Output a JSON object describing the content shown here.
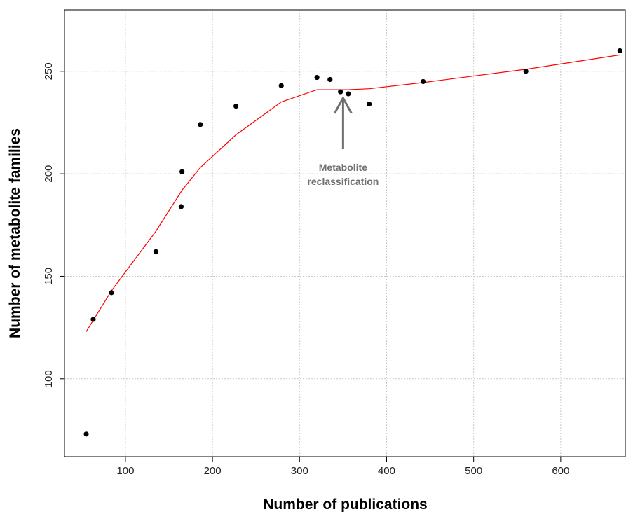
{
  "chart_data": {
    "type": "scatter",
    "xlabel": "Number of publications",
    "ylabel": "Number of metabolite families",
    "xlim": [
      30,
      675
    ],
    "ylim": [
      62,
      280
    ],
    "x_ticks": [
      100,
      200,
      300,
      400,
      500,
      600
    ],
    "y_ticks": [
      100,
      150,
      200,
      250
    ],
    "grid": true,
    "series": [
      {
        "type": "scatter",
        "color": "#000000",
        "points": [
          {
            "x": 55,
            "y": 73
          },
          {
            "x": 63,
            "y": 129
          },
          {
            "x": 84,
            "y": 142
          },
          {
            "x": 135,
            "y": 162
          },
          {
            "x": 164,
            "y": 184
          },
          {
            "x": 165,
            "y": 201
          },
          {
            "x": 186,
            "y": 224
          },
          {
            "x": 227,
            "y": 233
          },
          {
            "x": 279,
            "y": 243
          },
          {
            "x": 320,
            "y": 247
          },
          {
            "x": 335,
            "y": 246
          },
          {
            "x": 347,
            "y": 240
          },
          {
            "x": 356,
            "y": 239
          },
          {
            "x": 380,
            "y": 234
          },
          {
            "x": 442,
            "y": 245
          },
          {
            "x": 560,
            "y": 250
          },
          {
            "x": 668,
            "y": 260
          }
        ]
      },
      {
        "type": "line",
        "color": "#ff0000",
        "points": [
          {
            "x": 55,
            "y": 123
          },
          {
            "x": 84,
            "y": 143
          },
          {
            "x": 135,
            "y": 172
          },
          {
            "x": 165,
            "y": 192
          },
          {
            "x": 186,
            "y": 203
          },
          {
            "x": 227,
            "y": 219
          },
          {
            "x": 279,
            "y": 235
          },
          {
            "x": 320,
            "y": 241
          },
          {
            "x": 356,
            "y": 241
          },
          {
            "x": 380,
            "y": 241.5
          },
          {
            "x": 442,
            "y": 244.5
          },
          {
            "x": 560,
            "y": 251
          },
          {
            "x": 668,
            "y": 258
          }
        ]
      }
    ],
    "annotations": [
      {
        "text_lines": [
          "Metabolite",
          "reclassification"
        ],
        "arrow_x": 350,
        "arrow_from_y": 212,
        "arrow_to_y": 237,
        "color": "#707070"
      }
    ]
  }
}
